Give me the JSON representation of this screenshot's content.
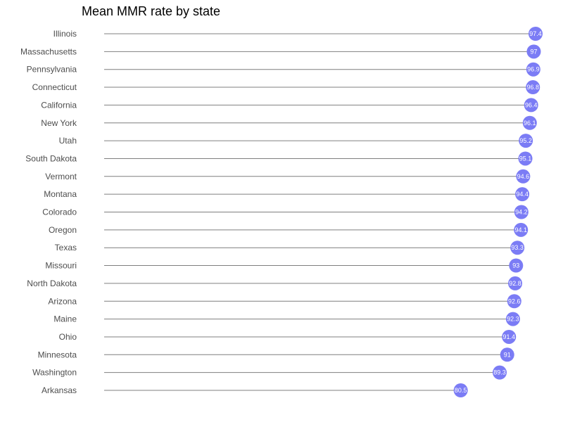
{
  "chart_data": {
    "type": "lollipop",
    "title": "Mean MMR rate by state",
    "xlabel": "",
    "ylabel": "",
    "grid": false,
    "legend": false,
    "x_domain": [
      0,
      97.4
    ],
    "dot_color": "#7b7cf5",
    "stem_color": "#7f7f7f",
    "value_label_color": "#ffffff",
    "categories": [
      "Illinois",
      "Massachusetts",
      "Pennsylvania",
      "Connecticut",
      "California",
      "New York",
      "Utah",
      "South Dakota",
      "Vermont",
      "Montana",
      "Colorado",
      "Oregon",
      "Texas",
      "Missouri",
      "North Dakota",
      "Arizona",
      "Maine",
      "Ohio",
      "Minnesota",
      "Washington",
      "Arkansas"
    ],
    "values": [
      97.4,
      97,
      96.9,
      96.8,
      96.4,
      96.1,
      95.2,
      95.1,
      94.6,
      94.4,
      94.2,
      94.1,
      93.3,
      93,
      92.8,
      92.6,
      92.3,
      91.4,
      91,
      89.3,
      80.5
    ],
    "value_labels": [
      "97.4",
      "97",
      "96.9",
      "96.8",
      "96.4",
      "96.1",
      "95.2",
      "95.1",
      "94.6",
      "94.4",
      "94.2",
      "94.1",
      "93.3",
      "93",
      "92.8",
      "92.6",
      "92.3",
      "91.4",
      "91",
      "89.3",
      "80.5"
    ]
  }
}
